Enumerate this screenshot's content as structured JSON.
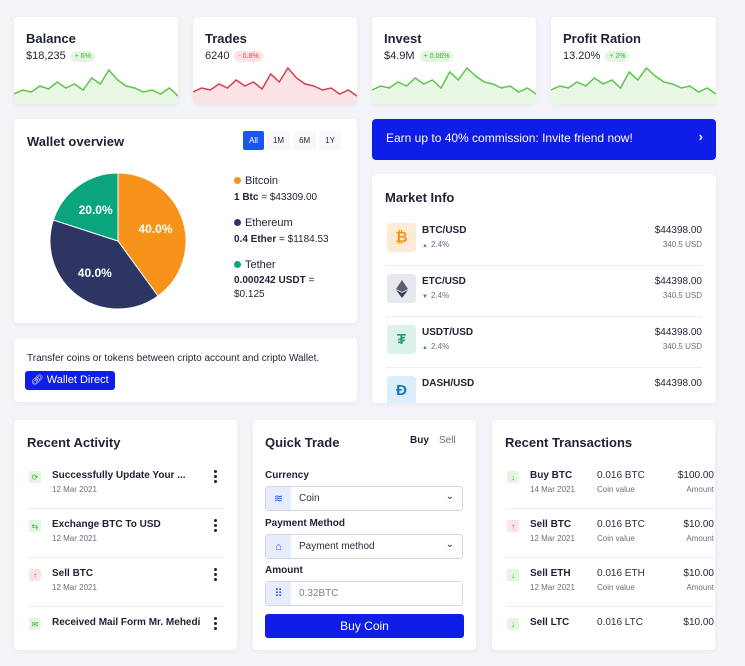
{
  "stats": [
    {
      "title": "Balance",
      "value": "$18,235",
      "change": "+ 6%",
      "trend": "up",
      "line_color": "#5cc54a",
      "fill_color": "#e9f8e5"
    },
    {
      "title": "Trades",
      "value": "6240",
      "change": "- 0.8%",
      "trend": "down",
      "line_color": "#d43f4f",
      "fill_color": "#fbe3e5"
    },
    {
      "title": "Invest",
      "value": "$4.9M",
      "change": "+ 0.06%",
      "trend": "up",
      "line_color": "#5cc54a",
      "fill_color": "#e9f8e5"
    },
    {
      "title": "Profit Ration",
      "value": "13.20%",
      "change": "+ 2%",
      "trend": "up",
      "line_color": "#5cc54a",
      "fill_color": "#e9f8e5"
    }
  ],
  "wallet": {
    "title": "Wallet overview",
    "ranges": [
      "All",
      "1M",
      "6M",
      "1Y"
    ],
    "active_range": "All",
    "legend": [
      {
        "name": "Bitcoin",
        "amount": "1 Btc",
        "equals": " = $43309.00",
        "color": "#f7931a"
      },
      {
        "name": "Ethereum",
        "amount": "0.4 Ether",
        "equals": " = $1184.53",
        "color": "#2d3663"
      },
      {
        "name": "Tether",
        "amount": "0.000242 USDT",
        "equals": " = $0.125",
        "color": "#0aa57c"
      }
    ],
    "transfer_text": "Transfer coins or tokens between cripto account and cripto Wallet.",
    "wallet_button": "Wallet Direct"
  },
  "chart_data": {
    "type": "pie",
    "labels": [
      "Bitcoin",
      "Ethereum",
      "Tether"
    ],
    "values": [
      40.0,
      40.0,
      20.0
    ],
    "slice_labels": [
      "40.0%",
      "40.0%",
      "20.0%"
    ],
    "colors": [
      "#f7931a",
      "#2d3663",
      "#0aa57c"
    ]
  },
  "promo": {
    "text": "Earn up to 40% commission: Invite friend now!",
    "arrow": "›"
  },
  "market": {
    "title": "Market Info",
    "rows": [
      {
        "pair": "BTC/USD",
        "change": "2.4%",
        "trend": "up",
        "price": "$44398.00",
        "usd": "340.5 USD",
        "icon": "bitcoin-icon"
      },
      {
        "pair": "ETC/USD",
        "change": "2.4%",
        "trend": "down",
        "price": "$44398.00",
        "usd": "340.5 USD",
        "icon": "ethereum-icon"
      },
      {
        "pair": "USDT/USD",
        "change": "2.4%",
        "trend": "up",
        "price": "$44398.00",
        "usd": "340.5 USD",
        "icon": "tether-icon"
      },
      {
        "pair": "DASH/USD",
        "change": "",
        "trend": "",
        "price": "$44398.00",
        "usd": "",
        "icon": "dash-icon"
      }
    ]
  },
  "activity": {
    "title": "Recent Activity",
    "rows": [
      {
        "title": "Successfully Update Your ...",
        "date": "12 Mar 2021",
        "icon": "refresh-icon"
      },
      {
        "title": "Exchange BTC To USD",
        "date": "12 Mar 2021",
        "icon": "exchange-icon"
      },
      {
        "title": "Sell BTC",
        "date": "12 Mar 2021",
        "icon": "arrow-up-icon"
      },
      {
        "title": "Received Mail Form Mr. Mehedi",
        "date": "",
        "icon": "mail-icon"
      }
    ]
  },
  "quick_trade": {
    "title": "Quick Trade",
    "tabs": [
      "Buy",
      "Sell"
    ],
    "currency_label": "Currency",
    "currency_value": "Coin",
    "payment_label": "Payment Method",
    "payment_value": "Payment method",
    "amount_label": "Amount",
    "amount_placeholder": "0.32BTC",
    "button": "Buy Coin"
  },
  "transactions": {
    "title": "Recent Transactions",
    "rows": [
      {
        "name": "Buy BTC",
        "date": "14 Mar 2021",
        "amount": "0.016 BTC",
        "coin_label": "Coin value",
        "usd": "$100.00",
        "usd_label": "Amount",
        "type": "buy"
      },
      {
        "name": "Sell BTC",
        "date": "12 Mar 2021",
        "amount": "0.016 BTC",
        "coin_label": "Coin value",
        "usd": "$10.00",
        "usd_label": "Amount",
        "type": "sell"
      },
      {
        "name": "Sell ETH",
        "date": "12 Mar 2021",
        "amount": "0.016 ETH",
        "coin_label": "Coin value",
        "usd": "$10.00",
        "usd_label": "Amount",
        "type": "buy"
      },
      {
        "name": "Sell LTC",
        "date": "",
        "amount": "0.016 LTC",
        "coin_label": "",
        "usd": "$10.00",
        "usd_label": "",
        "type": "buy"
      }
    ]
  }
}
